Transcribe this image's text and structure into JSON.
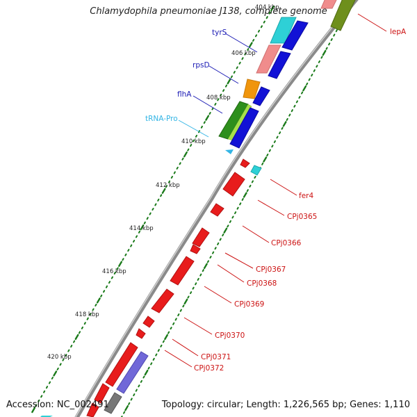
{
  "title": "Chlamydophila pneumoniae J138, complete genome",
  "footer": {
    "accession": "Accession: NC_002491",
    "summary": "Topology: circular; Length: 1,226,565 bp; Genes: 1,110"
  },
  "kbp_ticks": [
    "404 kbp",
    "406 kbp",
    "408 kbp",
    "410 kbp",
    "412 kbp",
    "414 kbp",
    "416 kbp",
    "418 kbp",
    "420 kbp"
  ],
  "feature_labels": {
    "tyrS": "tyrS",
    "rpsD": "rpsD",
    "flhA": "flhA",
    "tRNA_Pro": "tRNA-Pro",
    "lepA": "lepA",
    "fer4": "fer4",
    "CPj0365": "CPj0365",
    "CPj0366": "CPj0366",
    "CPj0367": "CPj0367",
    "CPj0368": "CPj0368",
    "CPj0369": "CPj0369",
    "CPj0370": "CPj0370",
    "CPj0371": "CPj0371",
    "CPj0372": "CPj0372"
  },
  "colors": {
    "backbone": "#7a7a7a",
    "tick": "#1a7a1a",
    "gene_label_blue": "#1a1ab4",
    "trna_label": "#33b5e5",
    "gene_label_red": "#cc1111",
    "cds_red": "#e81c1c",
    "blue": "#1212d6",
    "cyan": "#2ed0d6",
    "pink": "#f08c8c",
    "orange": "#f0950c",
    "green": "#2e8f1c",
    "lightgreen": "#a6e04a",
    "olive": "#6e8f1c",
    "purple": "#7068d8"
  }
}
